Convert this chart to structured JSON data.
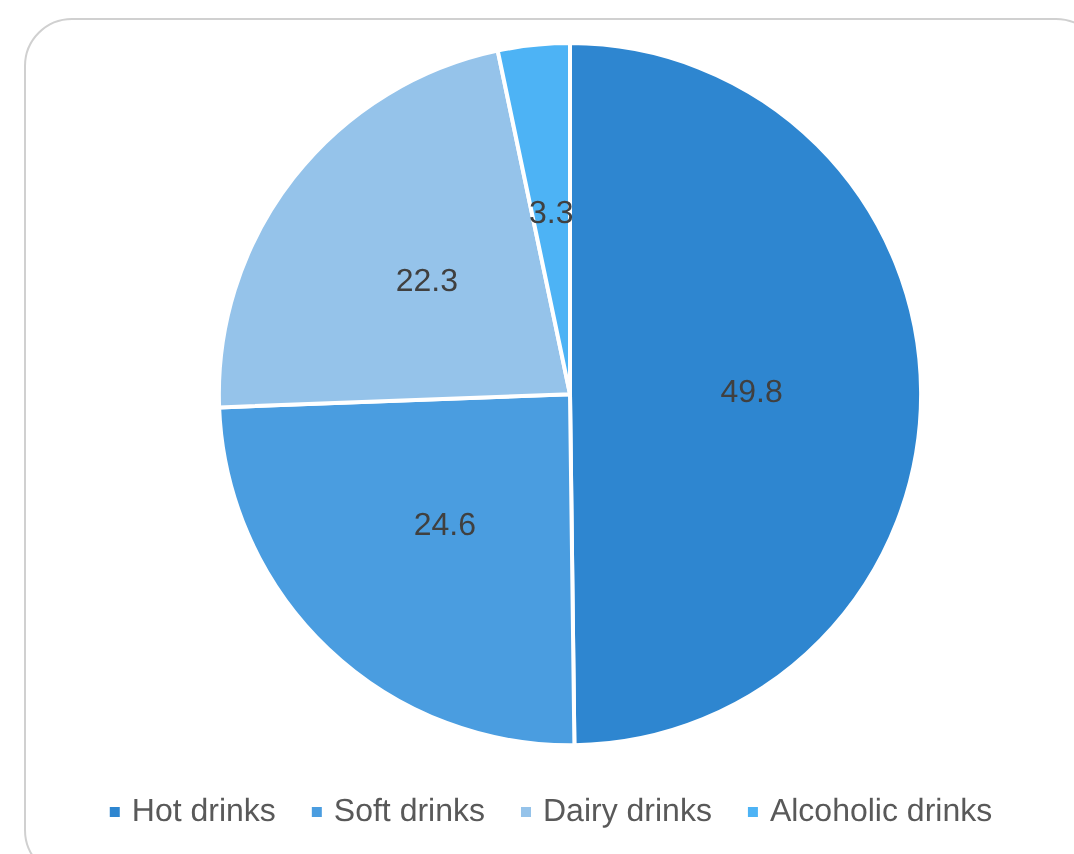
{
  "chart_data": {
    "type": "pie",
    "categories": [
      "Hot drinks",
      "Soft drinks",
      "Dairy drinks",
      "Alcoholic drinks"
    ],
    "values": [
      49.8,
      24.6,
      22.3,
      3.3
    ],
    "colors": [
      "#2e86d0",
      "#4a9de0",
      "#95c3ea",
      "#4db3f5"
    ],
    "data_labels": true,
    "legend": "bottom"
  }
}
